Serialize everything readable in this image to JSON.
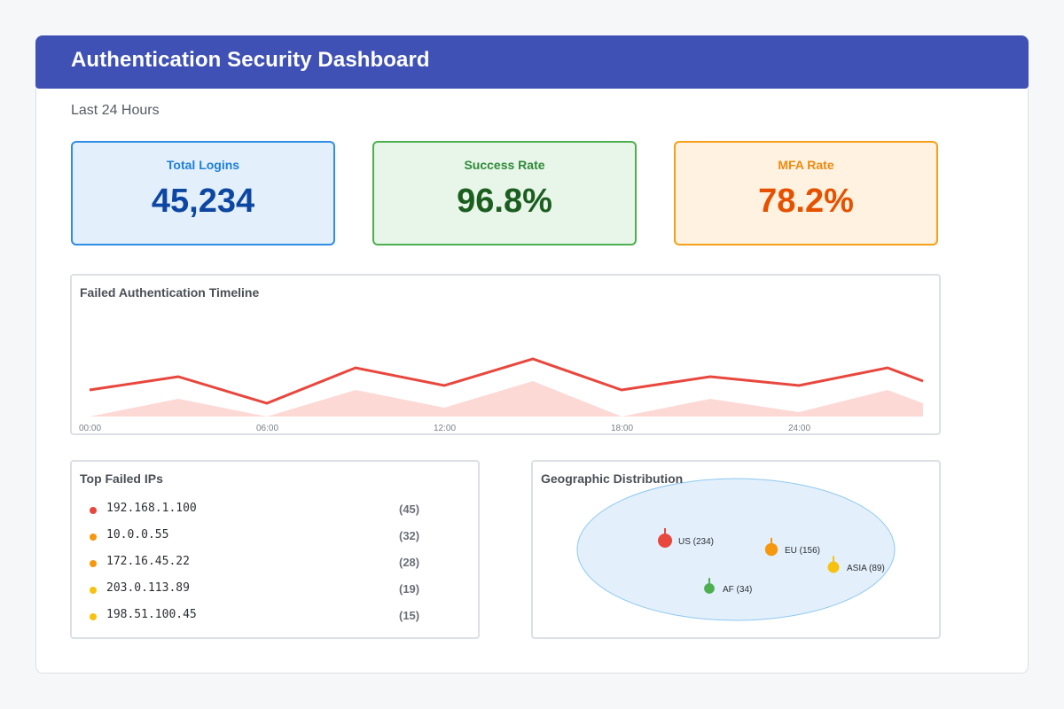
{
  "header": {
    "title": "Authentication Security Dashboard"
  },
  "subtitle": "Last 24 Hours",
  "stats": {
    "total_logins": {
      "label": "Total Logins",
      "value": "45,234"
    },
    "success_rate": {
      "label": "Success Rate",
      "value": "96.8%"
    },
    "mfa_rate": {
      "label": "MFA Rate",
      "value": "78.2%"
    }
  },
  "timeline": {
    "title": "Failed Authentication Timeline",
    "x_ticks": [
      "00:00",
      "06:00",
      "12:00",
      "18:00",
      "24:00"
    ],
    "chart_data": {
      "type": "line",
      "x": [
        0,
        3,
        6,
        9,
        12,
        15,
        18,
        21,
        24,
        27,
        28.2
      ],
      "series": [
        {
          "values": [
            6,
            9,
            3,
            11,
            7,
            13,
            6,
            9,
            7,
            11,
            8
          ],
          "color": "#e8473e"
        },
        {
          "values": [
            0,
            4,
            0,
            6,
            2,
            8,
            0,
            4,
            1,
            6,
            3
          ],
          "color": "#fdd9d6",
          "type": "area"
        }
      ],
      "x_range": [
        0,
        28.2
      ],
      "ylim": [
        0,
        24
      ],
      "grid": false
    }
  },
  "failed_ips": {
    "title": "Top Failed IPs",
    "items": [
      {
        "ip": "192.168.1.100",
        "count": "(45)",
        "color": "#e8473e"
      },
      {
        "ip": "10.0.0.55",
        "count": "(32)",
        "color": "#f5970f"
      },
      {
        "ip": "172.16.45.22",
        "count": "(28)",
        "color": "#f5970f"
      },
      {
        "ip": "203.0.113.89",
        "count": "(19)",
        "color": "#f6c10f"
      },
      {
        "ip": "198.51.100.45",
        "count": "(15)",
        "color": "#f6c10f"
      }
    ]
  },
  "geo": {
    "title": "Geographic Distribution",
    "regions": [
      {
        "label": "US (234)",
        "value": 234,
        "color": "#e8473e"
      },
      {
        "label": "EU (156)",
        "value": 156,
        "color": "#f5970f"
      },
      {
        "label": "ASIA (89)",
        "value": 89,
        "color": "#f6c10f"
      },
      {
        "label": "AF (34)",
        "value": 34,
        "color": "#4caf50"
      }
    ]
  }
}
